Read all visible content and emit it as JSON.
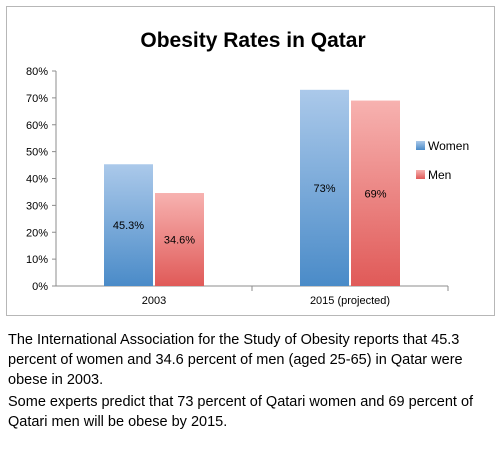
{
  "chart_data": {
    "type": "bar",
    "title": "Obesity Rates in Qatar",
    "categories": [
      "2003",
      "2015 (projected)"
    ],
    "series": [
      {
        "name": "Women",
        "values": [
          45.3,
          73
        ],
        "labels": [
          "45.3%",
          "73%"
        ],
        "color": "#4a8bc8",
        "color_light": "#abc9ea"
      },
      {
        "name": "Men",
        "values": [
          34.6,
          69
        ],
        "labels": [
          "34.6%",
          "69%"
        ],
        "color": "#e05a58",
        "color_light": "#f7b2b0"
      }
    ],
    "ylim": [
      0,
      80
    ],
    "yticks": [
      0,
      10,
      20,
      30,
      40,
      50,
      60,
      70,
      80
    ],
    "ytick_labels": [
      "0%",
      "10%",
      "20%",
      "30%",
      "40%",
      "50%",
      "60%",
      "70%",
      "80%"
    ],
    "xlabel": "",
    "ylabel": "",
    "grid": false,
    "legend": "right"
  },
  "captions": {
    "paragraph_1": "The International Association for the Study of Obesity reports that 45.3 percent of women and 34.6 percent of men (aged 25-65) in Qatar were obese in 2003.",
    "paragraph_2": "Some experts predict that 73 percent of Qatari women and 69 percent of Qatari men will be obese by 2015."
  }
}
